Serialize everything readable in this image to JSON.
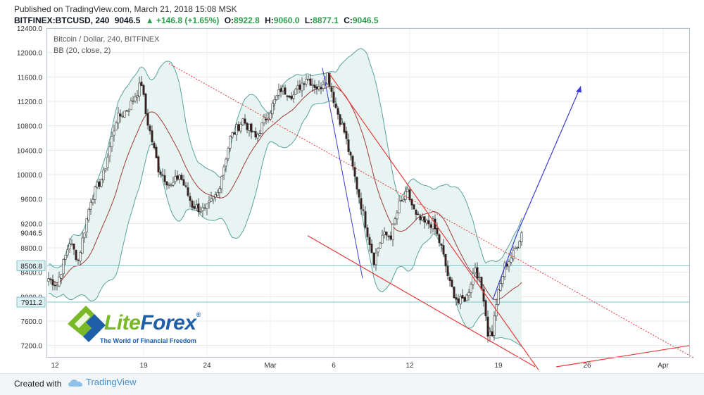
{
  "header": {
    "published": "Published on TradingView.com, March 21, 2018 15:08 MSK",
    "symbol": "BITFINEX:BTCUSD, 240",
    "last": "9046.5",
    "change": "▲ +146.8 (+1.65%)",
    "o_label": "O:",
    "o_value": "8922.8",
    "h_label": "H:",
    "h_value": "9060.0",
    "l_label": "L:",
    "l_value": "8877.1",
    "c_label": "C:",
    "c_value": "9046.5"
  },
  "legend": {
    "title": "Bitcoin / Dollar, 240, BITFINEX",
    "indicator": "BB (20, close, 2)"
  },
  "footer": {
    "created_with": "Created with",
    "brand": "TradingView"
  },
  "logo": {
    "name_part1": "Lite",
    "name_part2": "Forex",
    "reg": "®",
    "tagline": "The World of Financial Freedom"
  },
  "colors": {
    "up_candle": "#ffffff",
    "down_candle": "#3b1c1c",
    "band": "#5aa39b",
    "band_fill": "#e7f4f2",
    "basis": "#a03a3a",
    "trend_red": "#e83a3a",
    "arrow_blue": "#3b3bd0",
    "hline": "#7fc4cc"
  },
  "chart_data": {
    "type": "candlestick",
    "title": "Bitcoin / Dollar, 240, BITFINEX",
    "indicator": "BB (20, close, 2)",
    "y_range": [
      7000,
      12400
    ],
    "y_ticks": [
      7200,
      7600,
      8000,
      8400,
      8800,
      9200,
      9600,
      10000,
      10400,
      10800,
      11200,
      11600,
      12000,
      12400
    ],
    "y_tick_labels": [
      "7200.0",
      "7600.0",
      "8000.0",
      "8400.0",
      "8800.0",
      "9200.0",
      "9600.0",
      "10000.0",
      "10400.0",
      "10800.0",
      "11200.0",
      "11600.0",
      "12000.0",
      "12400.0"
    ],
    "x_labels": [
      {
        "label": "12",
        "bar": 3
      },
      {
        "label": "19",
        "bar": 45
      },
      {
        "label": "24",
        "bar": 75
      },
      {
        "label": "Mar",
        "bar": 105
      },
      {
        "label": "6",
        "bar": 135
      },
      {
        "label": "12",
        "bar": 171
      },
      {
        "label": "19",
        "bar": 213
      },
      {
        "label": "26",
        "bar": 255
      },
      {
        "label": "Apr",
        "bar": 291
      }
    ],
    "price_labels": [
      {
        "value": 9046.5,
        "label": "9046.5",
        "style": "plain"
      },
      {
        "value": 8506.8,
        "label": "8506.8",
        "style": "line"
      },
      {
        "value": 7911.2,
        "label": "7911.2",
        "style": "line"
      }
    ],
    "anchors": [
      [
        0,
        8300
      ],
      [
        4,
        8200
      ],
      [
        10,
        8900
      ],
      [
        14,
        8600
      ],
      [
        20,
        9600
      ],
      [
        26,
        10000
      ],
      [
        32,
        10900
      ],
      [
        38,
        11100
      ],
      [
        44,
        11500
      ],
      [
        46,
        11000
      ],
      [
        52,
        10100
      ],
      [
        58,
        9800
      ],
      [
        62,
        10000
      ],
      [
        68,
        9500
      ],
      [
        74,
        9400
      ],
      [
        80,
        9700
      ],
      [
        86,
        10600
      ],
      [
        92,
        10900
      ],
      [
        98,
        10600
      ],
      [
        104,
        11000
      ],
      [
        110,
        11400
      ],
      [
        116,
        11300
      ],
      [
        122,
        11600
      ],
      [
        128,
        11400
      ],
      [
        132,
        11650
      ],
      [
        136,
        11100
      ],
      [
        140,
        10700
      ],
      [
        146,
        9800
      ],
      [
        150,
        9200
      ],
      [
        154,
        8600
      ],
      [
        158,
        9000
      ],
      [
        162,
        9000
      ],
      [
        166,
        9500
      ],
      [
        170,
        9700
      ],
      [
        174,
        9300
      ],
      [
        178,
        9200
      ],
      [
        182,
        9200
      ],
      [
        186,
        8800
      ],
      [
        190,
        8200
      ],
      [
        194,
        7900
      ],
      [
        198,
        8000
      ],
      [
        202,
        8500
      ],
      [
        206,
        8000
      ],
      [
        208,
        7400
      ],
      [
        210,
        7400
      ],
      [
        212,
        7900
      ],
      [
        216,
        8500
      ],
      [
        220,
        8700
      ],
      [
        224,
        9050
      ]
    ],
    "last_bar": 224
  }
}
